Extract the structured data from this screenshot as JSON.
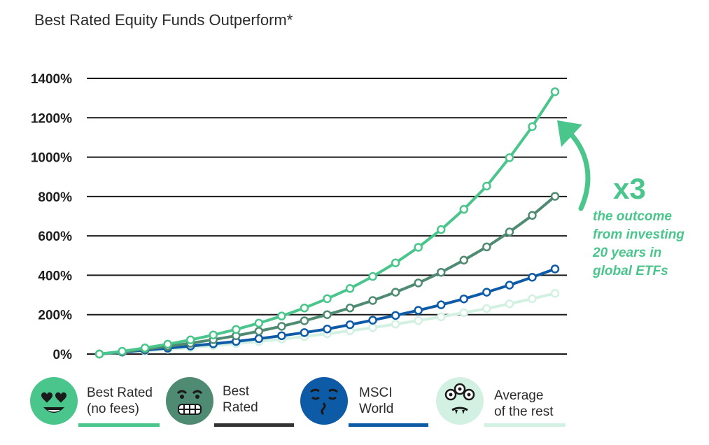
{
  "chart_data": {
    "type": "line",
    "title": "Best Rated Equity Funds Outperform*",
    "ylim": [
      0,
      1400
    ],
    "y_ticks": [
      "0%",
      "200%",
      "400%",
      "600%",
      "800%",
      "1000%",
      "1200%",
      "1400%"
    ],
    "y_tick_values": [
      0,
      200,
      400,
      600,
      800,
      1000,
      1200,
      1400
    ],
    "x": [
      0,
      1,
      2,
      3,
      4,
      5,
      6,
      7,
      8,
      9,
      10,
      11,
      12,
      13,
      14,
      15,
      16,
      17,
      18,
      19,
      20
    ],
    "grid": "horizontal",
    "series": [
      {
        "name": "Best Rated (no fees)",
        "color": "#4ac58c",
        "values": [
          0,
          14,
          31,
          50,
          72,
          97,
          125,
          157,
          193,
          234,
          281,
          333,
          394,
          463,
          542,
          632,
          735,
          853,
          997,
          1155,
          1332
        ]
      },
      {
        "name": "Best Rated",
        "color": "#4f8b72",
        "values": [
          0,
          12,
          25,
          39,
          55,
          73,
          93,
          116,
          141,
          169,
          200,
          234,
          272,
          314,
          361,
          415,
          477,
          544,
          620,
          704,
          801
        ]
      },
      {
        "name": "MSCI World",
        "color": "#0d5aa7",
        "values": [
          0,
          10,
          20,
          30,
          41,
          52,
          64,
          78,
          93,
          109,
          127,
          149,
          172,
          196,
          222,
          250,
          280,
          314,
          350,
          390,
          432
        ]
      },
      {
        "name": "Average of the rest",
        "color": "#d2f1e2",
        "values": [
          0,
          8,
          16,
          24,
          33,
          43,
          53,
          64,
          76,
          89,
          103,
          118,
          134,
          152,
          170,
          189,
          210,
          231,
          255,
          281,
          308
        ]
      }
    ],
    "annotation": {
      "multiplier": "x3",
      "lines": [
        "the outcome",
        "from investing",
        "20 years in",
        "global ETFs"
      ]
    }
  },
  "legend": [
    {
      "label": "Best Rated\n(no fees)",
      "icon": "heart-eyes-face-icon",
      "face_color": "#4ac58c",
      "bar_color": "#4ac58c"
    },
    {
      "label": "Best\nRated",
      "icon": "grinning-face-icon",
      "face_color": "#4f8b72",
      "bar_color": "#333333"
    },
    {
      "label": "MSCI\nWorld",
      "icon": "smirking-face-icon",
      "face_color": "#0d5aa7",
      "bar_color": "#0d5aa7"
    },
    {
      "label": "Average\nof the rest",
      "icon": "alien-face-icon",
      "face_color": "#d2f1e2",
      "bar_color": "#d2f1e2"
    }
  ]
}
